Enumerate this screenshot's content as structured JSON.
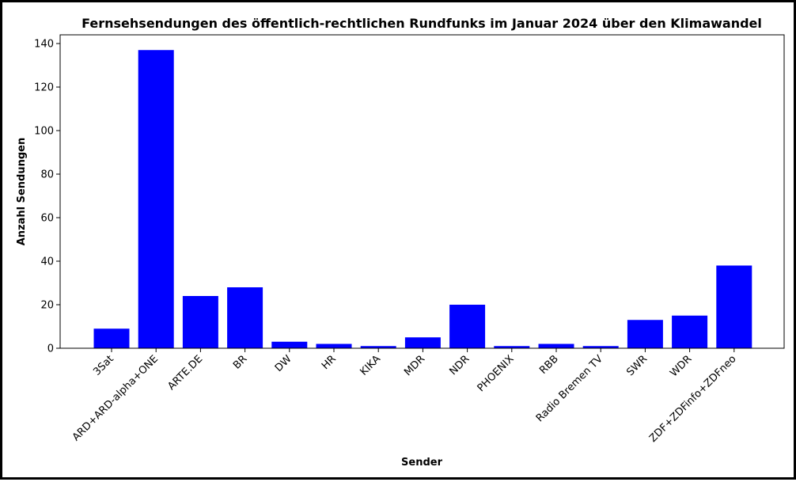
{
  "chart_data": {
    "type": "bar",
    "title": "Fernsehsendungen des öffentlich-rechtlichen Rundfunks im Januar 2024 über den Klimawandel",
    "xlabel": "Sender",
    "ylabel": "Anzahl Sendungen",
    "categories": [
      "3Sat",
      "ARD+ARD-alpha+ONE",
      "ARTE.DE",
      "BR",
      "DW",
      "HR",
      "KIKA",
      "MDR",
      "NDR",
      "PHOENIX",
      "RBB",
      "Radio Bremen TV",
      "SWR",
      "WDR",
      "ZDF+ZDFinfo+ZDFneo"
    ],
    "values": [
      9,
      137,
      24,
      28,
      3,
      2,
      1,
      5,
      20,
      1,
      2,
      1,
      13,
      15,
      38
    ],
    "ylim": [
      0,
      144
    ],
    "yticks": [
      0,
      20,
      40,
      60,
      80,
      100,
      120,
      140
    ],
    "bar_color": "#0000ff",
    "grid": false,
    "legend": "none"
  }
}
